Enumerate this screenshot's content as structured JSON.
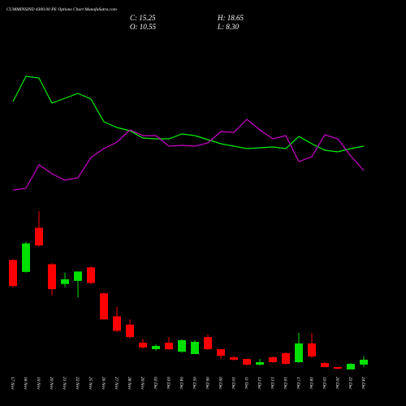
{
  "chart_data": {
    "type": "candlestick",
    "title": "CUMMINSIND 4300.00 PE Options Chart MunafaSutra.com",
    "ohlc_texts": {
      "close": "C: 15.25",
      "high": "H: 18.65",
      "open": "O: 10.55",
      "low": "L: 8.30"
    },
    "categories": [
      "17 Nov",
      "18 Nov",
      "19 Nov",
      "20 Nov",
      "21 Nov",
      "22 Nov",
      "25 Nov",
      "26 Nov",
      "27 Nov",
      "28 Nov",
      "29 Nov",
      "02 Dec",
      "03 Dec",
      "04 Dec",
      "05 Dec",
      "06 Dec",
      "09 Dec",
      "10 Dec",
      "11 Dec",
      "12 Dec",
      "13 Dec",
      "16 Dec",
      "17 Dec",
      "18 Dec",
      "19 Dec",
      "20 Dec",
      "23 Dec",
      "24 Dec"
    ],
    "open": [
      111,
      99.6,
      142,
      107,
      88,
      91,
      104,
      79,
      57,
      49,
      31.6,
      25.4,
      31.6,
      23,
      20.7,
      37,
      25.4,
      17.6,
      16,
      10.5,
      17.6,
      21.5,
      12.9,
      30.9,
      12.1,
      8.2,
      5.9,
      10.55
    ],
    "high": [
      112,
      128.5,
      158,
      108,
      99,
      100,
      105,
      80,
      66,
      54,
      35,
      30,
      37,
      35,
      34,
      39.5,
      25.4,
      19,
      16,
      16,
      18.4,
      22.3,
      41,
      41,
      12.9,
      8.2,
      12.1,
      18.65
    ],
    "low": [
      85,
      99,
      124,
      77,
      85,
      75,
      88,
      53.5,
      42,
      35.5,
      26,
      24,
      24.6,
      22,
      20.7,
      24.6,
      16,
      14.5,
      9.8,
      9.8,
      12.1,
      10.5,
      12.1,
      16.8,
      8.2,
      5.9,
      5.9,
      8.3
    ],
    "close": [
      86,
      127,
      125,
      83,
      92.5,
      100,
      89,
      54,
      43,
      37,
      27,
      28.5,
      25.4,
      34,
      32.4,
      25.4,
      19,
      15.2,
      10.5,
      12.9,
      12.9,
      11.3,
      30.9,
      18.4,
      8.2,
      6.6,
      11.3,
      15.25
    ],
    "up_color": "#00e000",
    "down_color": "#ff0000",
    "lines": [
      {
        "color": "#00ee00",
        "values": [
          125,
          156,
          154,
          123,
          129,
          135,
          128,
          100,
          93,
          89,
          80,
          79,
          79,
          85,
          83,
          78,
          73,
          70,
          67,
          68,
          69,
          67,
          82,
          73,
          65,
          63,
          67,
          70
        ]
      },
      {
        "color": "#cc00cc",
        "values": [
          16,
          18,
          47,
          36,
          28,
          31,
          56,
          67,
          75,
          90,
          83,
          83,
          70,
          71,
          70,
          74,
          88,
          87,
          103,
          90,
          79,
          83,
          51,
          57,
          84,
          79,
          58,
          40
        ]
      }
    ]
  }
}
